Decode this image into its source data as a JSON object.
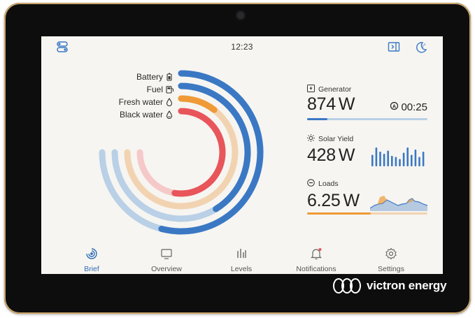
{
  "topbar": {
    "time": "12:23"
  },
  "tanks": [
    {
      "label": "Battery",
      "icon": "battery-icon",
      "color": "#3b78c4",
      "fill": 0.72
    },
    {
      "label": "Fuel",
      "icon": "fuel-icon",
      "color": "#3b78c4",
      "fill": 0.55
    },
    {
      "label": "Fresh water",
      "icon": "water-drop-icon",
      "color": "#ef9a36",
      "fill": 0.14
    },
    {
      "label": "Black water",
      "icon": "water-drop-icon",
      "color": "#e8555a",
      "fill": 0.7
    }
  ],
  "cards": {
    "generator": {
      "title": "Generator",
      "value": "874",
      "unit": "W",
      "timer": "00:25",
      "bar_fill": 0.17,
      "color": "#3b78c4"
    },
    "solar": {
      "title": "Solar Yield",
      "value": "428",
      "unit": "W",
      "color": "#3b78c4"
    },
    "loads": {
      "title": "Loads",
      "value": "6.25",
      "unit": "W",
      "bar_fill": 0.53,
      "color": "#ef9a36"
    }
  },
  "nav": [
    {
      "label": "Brief",
      "icon": "brief-icon",
      "active": true
    },
    {
      "label": "Overview",
      "icon": "overview-icon",
      "active": false
    },
    {
      "label": "Levels",
      "icon": "levels-icon",
      "active": false
    },
    {
      "label": "Notifications",
      "icon": "notifications-icon",
      "active": false
    },
    {
      "label": "Settings",
      "icon": "settings-icon",
      "active": false
    }
  ],
  "brand": {
    "name": "victron energy"
  },
  "colors": {
    "accent": "#2f6db5",
    "track_blue": "#b9d0e6",
    "track_orange": "#f2d3b1",
    "red": "#e8555a",
    "orange": "#ef9a36"
  }
}
